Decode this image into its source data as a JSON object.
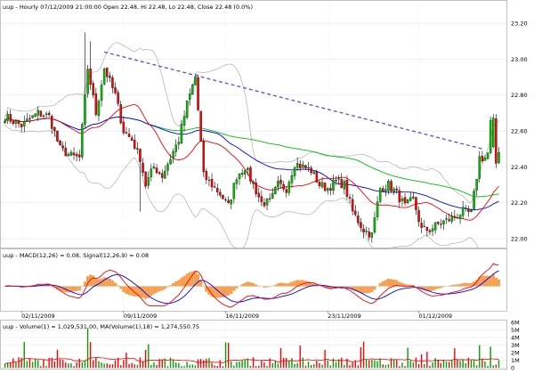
{
  "chart_data": [
    {
      "type": "candlestick",
      "title_text": "uup - Hourly 07/12/2009 21:00:00 Open 22.48, Hi 22.48, Lo 22.48, Close 22.48 (0.0%)",
      "ylim": [
        21.96,
        23.3
      ],
      "y_ticks": [
        "22.00",
        "22.20",
        "22.40",
        "22.60",
        "22.80",
        "23.00",
        "23.20"
      ],
      "x_labels": [
        "02/11/2009",
        "09/11/2009",
        "16/11/2009",
        "23/11/2009",
        "01/12/2009"
      ],
      "x_label_positions": [
        6,
        43,
        80,
        117,
        150
      ],
      "n_bars": 180,
      "anchors": [
        [
          0,
          22.68
        ],
        [
          6,
          22.63
        ],
        [
          12,
          22.7
        ],
        [
          16,
          22.68
        ],
        [
          20,
          22.5
        ],
        [
          24,
          22.46
        ],
        [
          27,
          22.45
        ],
        [
          30,
          22.95
        ],
        [
          33,
          22.7
        ],
        [
          36,
          22.95
        ],
        [
          40,
          22.8
        ],
        [
          43,
          22.6
        ],
        [
          46,
          22.55
        ],
        [
          49,
          22.45
        ],
        [
          51,
          22.3
        ],
        [
          54,
          22.4
        ],
        [
          57,
          22.35
        ],
        [
          60,
          22.45
        ],
        [
          63,
          22.55
        ],
        [
          66,
          22.75
        ],
        [
          69,
          22.9
        ],
        [
          72,
          22.35
        ],
        [
          75,
          22.3
        ],
        [
          78,
          22.25
        ],
        [
          81,
          22.18
        ],
        [
          84,
          22.35
        ],
        [
          87,
          22.4
        ],
        [
          90,
          22.3
        ],
        [
          93,
          22.2
        ],
        [
          96,
          22.2
        ],
        [
          99,
          22.3
        ],
        [
          102,
          22.28
        ],
        [
          105,
          22.42
        ],
        [
          108,
          22.4
        ],
        [
          111,
          22.38
        ],
        [
          114,
          22.3
        ],
        [
          117,
          22.28
        ],
        [
          120,
          22.32
        ],
        [
          123,
          22.3
        ],
        [
          126,
          22.15
        ],
        [
          130,
          22.05
        ],
        [
          133,
          22.02
        ],
        [
          136,
          22.28
        ],
        [
          139,
          22.3
        ],
        [
          142,
          22.25
        ],
        [
          145,
          22.18
        ],
        [
          148,
          22.22
        ],
        [
          151,
          22.05
        ],
        [
          154,
          22.05
        ],
        [
          157,
          22.08
        ],
        [
          160,
          22.1
        ],
        [
          163,
          22.12
        ],
        [
          166,
          22.15
        ],
        [
          169,
          22.14
        ],
        [
          172,
          22.45
        ],
        [
          174,
          22.45
        ],
        [
          176,
          22.5
        ],
        [
          177,
          22.65
        ],
        [
          178,
          22.42
        ],
        [
          179,
          22.48
        ]
      ],
      "series": [
        {
          "name": "MA 20",
          "color": "#ff0000"
        },
        {
          "name": "MA 50",
          "color": "#0000ff"
        },
        {
          "name": "MA 100",
          "color": "#00c000"
        },
        {
          "name": "Bollinger Bands",
          "color": "#b8b8b8"
        }
      ],
      "trendline": {
        "from": [
          36,
          23.04
        ],
        "to": [
          173,
          22.5
        ],
        "color": "#5b5bd6"
      }
    },
    {
      "type": "macd",
      "title_text": "uup - MACD(12,26) = 0.08, Signal(12,26,9) = 0.08",
      "series": [
        {
          "name": "MACD",
          "color": "#ff0000"
        },
        {
          "name": "Signal",
          "color": "#0000ff"
        },
        {
          "name": "Histogram",
          "color": "#f4a050"
        }
      ]
    },
    {
      "type": "bar",
      "title_text": "uup - Volume(1) = 1,029,531.00, MA(Volume(1),18) = 1,274,550.75",
      "y_ticks": [
        "6M",
        "5M",
        "4M",
        "3M",
        "2M",
        "1M",
        "0"
      ],
      "series": [
        {
          "name": "Volume",
          "color": "#00a000"
        },
        {
          "name": "MA Volume",
          "color": "#ff0000"
        }
      ]
    }
  ],
  "colors": {
    "up": "#00c000",
    "down": "#ff0000",
    "wick": "#000000",
    "grid": "#e6e6e6"
  }
}
